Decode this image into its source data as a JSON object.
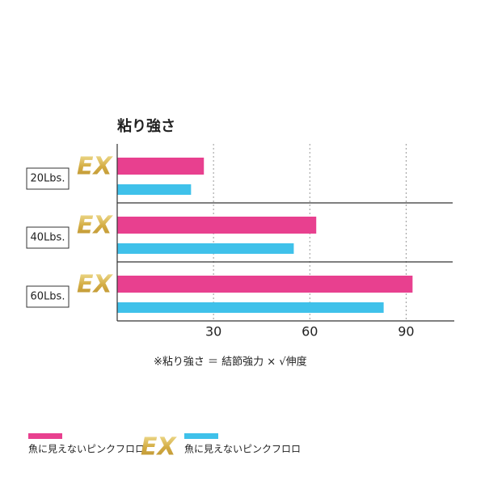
{
  "chart_data": {
    "type": "hbar",
    "title": "粘り強さ",
    "note": "※粘り強さ ＝ 結節強力 × √伸度",
    "ex_badge": "EX",
    "categories": [
      "20Lbs.",
      "40Lbs.",
      "60Lbs."
    ],
    "series": [
      {
        "name": "魚に見えないピンクフロロ",
        "color": "#e8408f",
        "values": [
          27,
          62,
          92
        ]
      },
      {
        "name": "魚に見えないピンクフロロ",
        "color": "#3fc1ea",
        "values": [
          23,
          55,
          83
        ]
      }
    ],
    "xlim": [
      0,
      105
    ],
    "xticks": [
      30,
      60,
      90
    ],
    "grid": true
  }
}
